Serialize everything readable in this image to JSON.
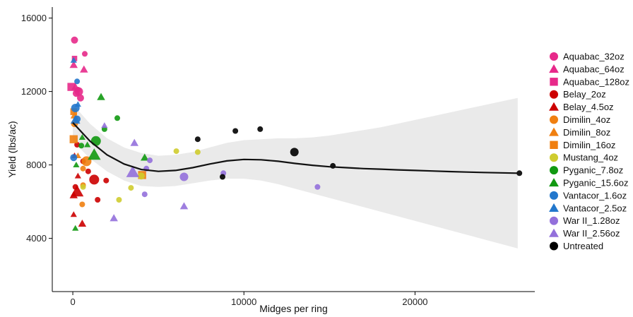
{
  "chart_data": {
    "type": "scatter",
    "xlabel": "Midges per ring",
    "ylabel": "Yield (lbs/ac)",
    "xlim": [
      -1200,
      27000
    ],
    "ylim": [
      1100,
      16600
    ],
    "x_ticks": [
      0,
      10000,
      20000
    ],
    "x_tick_labels": [
      "0",
      "10000",
      "20000"
    ],
    "y_ticks": [
      4000,
      8000,
      12000,
      16000
    ],
    "y_tick_labels": [
      "4000",
      "8000",
      "12000",
      "16000"
    ],
    "grid": false,
    "legend_position": "right",
    "legend": [
      {
        "label": "Aquabac_32oz",
        "shape": "circle",
        "color": "#E7298A"
      },
      {
        "label": "Aquabac_64oz",
        "shape": "triangle",
        "color": "#E7298A"
      },
      {
        "label": "Aquabac_128oz",
        "shape": "square",
        "color": "#E7298A"
      },
      {
        "label": "Belay_2oz",
        "shape": "circle",
        "color": "#CC0000"
      },
      {
        "label": "Belay_4.5oz",
        "shape": "triangle",
        "color": "#CC0000"
      },
      {
        "label": "Dimilin_4oz",
        "shape": "circle",
        "color": "#F07F10"
      },
      {
        "label": "Dimilin_8oz",
        "shape": "triangle",
        "color": "#F07F10"
      },
      {
        "label": "Dimilin_16oz",
        "shape": "square",
        "color": "#F07F10"
      },
      {
        "label": "Mustang_4oz",
        "shape": "circle",
        "color": "#CFCC2F"
      },
      {
        "label": "Pyganic_7.8oz",
        "shape": "circle",
        "color": "#119911"
      },
      {
        "label": "Pyganic_15.6oz",
        "shape": "triangle",
        "color": "#119911"
      },
      {
        "label": "Vantacor_1.6oz",
        "shape": "circle",
        "color": "#2277CC"
      },
      {
        "label": "Vantacor_2.5oz",
        "shape": "triangle",
        "color": "#2277CC"
      },
      {
        "label": "War II_1.28oz",
        "shape": "circle",
        "color": "#9370DB"
      },
      {
        "label": "War II_2.56oz",
        "shape": "triangle",
        "color": "#9370DB"
      },
      {
        "label": "Untreated",
        "shape": "circle",
        "color": "#000000"
      }
    ],
    "points": [
      {
        "g": 0,
        "x": 100,
        "y": 14800,
        "s": 5
      },
      {
        "g": 0,
        "x": 700,
        "y": 14050,
        "s": 4
      },
      {
        "g": 0,
        "x": 350,
        "y": 12000,
        "s": 6
      },
      {
        "g": 0,
        "x": 200,
        "y": 11900,
        "s": 5
      },
      {
        "g": 0,
        "x": 450,
        "y": 11650,
        "s": 5
      },
      {
        "g": 0,
        "x": 300,
        "y": 12100,
        "s": 4
      },
      {
        "g": 1,
        "x": 50,
        "y": 13450,
        "s": 5
      },
      {
        "g": 1,
        "x": 650,
        "y": 13200,
        "s": 5
      },
      {
        "g": 1,
        "x": 150,
        "y": 12250,
        "s": 5
      },
      {
        "g": 2,
        "x": -80,
        "y": 12250,
        "s": 6
      },
      {
        "g": 2,
        "x": 100,
        "y": 13800,
        "s": 4
      },
      {
        "g": 3,
        "x": 250,
        "y": 9100,
        "s": 4
      },
      {
        "g": 3,
        "x": 1250,
        "y": 7200,
        "s": 7
      },
      {
        "g": 3,
        "x": 1450,
        "y": 6100,
        "s": 4
      },
      {
        "g": 3,
        "x": 1950,
        "y": 7150,
        "s": 4
      },
      {
        "g": 3,
        "x": 900,
        "y": 7650,
        "s": 4
      },
      {
        "g": 3,
        "x": 600,
        "y": 8200,
        "s": 4
      },
      {
        "g": 3,
        "x": 150,
        "y": 6800,
        "s": 4
      },
      {
        "g": 4,
        "x": 250,
        "y": 6550,
        "s": 8
      },
      {
        "g": 4,
        "x": 50,
        "y": 6350,
        "s": 5
      },
      {
        "g": 4,
        "x": 550,
        "y": 4800,
        "s": 5
      },
      {
        "g": 4,
        "x": 50,
        "y": 5300,
        "s": 4
      },
      {
        "g": 4,
        "x": 300,
        "y": 7400,
        "s": 4
      },
      {
        "g": 4,
        "x": 100,
        "y": 8500,
        "s": 4
      },
      {
        "g": 5,
        "x": 800,
        "y": 8200,
        "s": 7
      },
      {
        "g": 5,
        "x": 600,
        "y": 7800,
        "s": 4
      },
      {
        "g": 5,
        "x": 550,
        "y": 5850,
        "s": 4
      },
      {
        "g": 5,
        "x": 600,
        "y": 6900,
        "s": 4
      },
      {
        "g": 5,
        "x": 100,
        "y": 10250,
        "s": 5
      },
      {
        "g": 6,
        "x": 100,
        "y": 10700,
        "s": 5
      },
      {
        "g": 6,
        "x": 300,
        "y": 8500,
        "s": 4
      },
      {
        "g": 7,
        "x": 50,
        "y": 9400,
        "s": 6
      },
      {
        "g": 7,
        "x": 4050,
        "y": 7450,
        "s": 6
      },
      {
        "g": 7,
        "x": 50,
        "y": 10900,
        "s": 5
      },
      {
        "g": 8,
        "x": 4000,
        "y": 7400,
        "s": 5
      },
      {
        "g": 8,
        "x": 3400,
        "y": 6750,
        "s": 4
      },
      {
        "g": 8,
        "x": 2700,
        "y": 6100,
        "s": 4
      },
      {
        "g": 8,
        "x": 6050,
        "y": 8750,
        "s": 4
      },
      {
        "g": 8,
        "x": 7300,
        "y": 8700,
        "s": 4
      },
      {
        "g": 8,
        "x": 600,
        "y": 6800,
        "s": 4
      },
      {
        "g": 9,
        "x": 1350,
        "y": 9300,
        "s": 7
      },
      {
        "g": 9,
        "x": 1850,
        "y": 9950,
        "s": 4
      },
      {
        "g": 9,
        "x": 2600,
        "y": 10550,
        "s": 4
      },
      {
        "g": 9,
        "x": 500,
        "y": 9050,
        "s": 4
      },
      {
        "g": 10,
        "x": 1250,
        "y": 8550,
        "s": 8
      },
      {
        "g": 10,
        "x": 1650,
        "y": 11700,
        "s": 5
      },
      {
        "g": 10,
        "x": 4200,
        "y": 8400,
        "s": 5
      },
      {
        "g": 10,
        "x": 850,
        "y": 9100,
        "s": 4
      },
      {
        "g": 10,
        "x": 150,
        "y": 4550,
        "s": 4
      },
      {
        "g": 10,
        "x": 200,
        "y": 8000,
        "s": 4
      },
      {
        "g": 10,
        "x": 550,
        "y": 9500,
        "s": 4
      },
      {
        "g": 11,
        "x": 150,
        "y": 11100,
        "s": 6
      },
      {
        "g": 11,
        "x": 250,
        "y": 10500,
        "s": 5
      },
      {
        "g": 11,
        "x": 50,
        "y": 8400,
        "s": 5
      },
      {
        "g": 11,
        "x": 250,
        "y": 12550,
        "s": 4
      },
      {
        "g": 12,
        "x": 50,
        "y": 13700,
        "s": 4
      },
      {
        "g": 12,
        "x": 150,
        "y": 10450,
        "s": 6
      },
      {
        "g": 12,
        "x": 300,
        "y": 11300,
        "s": 4
      },
      {
        "g": 13,
        "x": 6500,
        "y": 7350,
        "s": 6
      },
      {
        "g": 13,
        "x": 4300,
        "y": 7800,
        "s": 4
      },
      {
        "g": 13,
        "x": 4500,
        "y": 8250,
        "s": 4
      },
      {
        "g": 13,
        "x": 8800,
        "y": 7550,
        "s": 4
      },
      {
        "g": 13,
        "x": 14300,
        "y": 6800,
        "s": 4
      },
      {
        "g": 13,
        "x": 4200,
        "y": 6400,
        "s": 4
      },
      {
        "g": 14,
        "x": 3500,
        "y": 7600,
        "s": 8
      },
      {
        "g": 14,
        "x": 3600,
        "y": 9200,
        "s": 5
      },
      {
        "g": 14,
        "x": 2400,
        "y": 5100,
        "s": 5
      },
      {
        "g": 14,
        "x": 6500,
        "y": 5750,
        "s": 5
      },
      {
        "g": 14,
        "x": 1850,
        "y": 10150,
        "s": 4
      },
      {
        "g": 15,
        "x": 12950,
        "y": 8700,
        "s": 6
      },
      {
        "g": 15,
        "x": 10950,
        "y": 9950,
        "s": 4
      },
      {
        "g": 15,
        "x": 9500,
        "y": 9850,
        "s": 4
      },
      {
        "g": 15,
        "x": 7300,
        "y": 9400,
        "s": 4
      },
      {
        "g": 15,
        "x": 8750,
        "y": 7350,
        "s": 4
      },
      {
        "g": 15,
        "x": 15200,
        "y": 7950,
        "s": 4
      },
      {
        "g": 15,
        "x": 26100,
        "y": 7550,
        "s": 4
      }
    ],
    "smooth": {
      "x": [
        0,
        1000,
        2000,
        3000,
        4000,
        5000,
        6000,
        7000,
        8000,
        9000,
        10000,
        11000,
        12000,
        13000,
        14000,
        15000,
        16000,
        17000,
        18000,
        19000,
        20000,
        21000,
        22000,
        23000,
        24000,
        25000,
        26000
      ],
      "y": [
        10300,
        9300,
        8550,
        8050,
        7750,
        7650,
        7700,
        7850,
        8050,
        8220,
        8300,
        8280,
        8200,
        8080,
        7980,
        7900,
        7850,
        7800,
        7770,
        7730,
        7700,
        7670,
        7640,
        7610,
        7590,
        7570,
        7550
      ],
      "lower": [
        9300,
        8350,
        7650,
        7150,
        6850,
        6800,
        6850,
        7000,
        7150,
        7250,
        7250,
        7150,
        6950,
        6700,
        6450,
        6200,
        5950,
        5700,
        5450,
        5200,
        4950,
        4700,
        4450,
        4200,
        3950,
        3700,
        3450
      ],
      "upper": [
        11300,
        10250,
        9450,
        8950,
        8650,
        8500,
        8550,
        8700,
        8950,
        9200,
        9350,
        9400,
        9450,
        9450,
        9500,
        9600,
        9750,
        9900,
        10050,
        10250,
        10450,
        10650,
        10850,
        11050,
        11250,
        11450,
        11650
      ]
    }
  }
}
